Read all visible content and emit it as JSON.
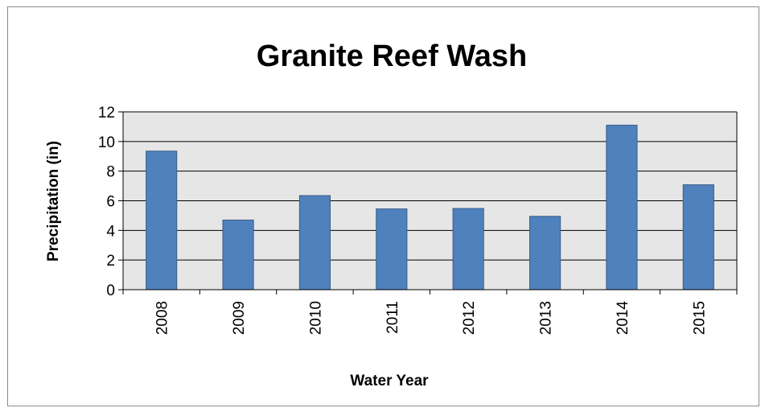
{
  "chart_data": {
    "type": "bar",
    "title": "Granite Reef Wash",
    "xlabel": "Water Year",
    "ylabel": "Precipitation (in)",
    "categories": [
      "2008",
      "2009",
      "2010",
      "2011",
      "2012",
      "2013",
      "2014",
      "2015"
    ],
    "values": [
      9.35,
      4.7,
      6.35,
      5.45,
      5.48,
      4.95,
      11.1,
      7.08
    ],
    "ylim": [
      0,
      12
    ],
    "yticks": [
      0,
      2,
      4,
      6,
      8,
      10,
      12
    ],
    "grid": true,
    "legend": "none",
    "colors": {
      "bar_fill": "#4f81bd",
      "bar_stroke": "#385d8a",
      "plot_background": "#e6e6e6",
      "gridline": "#000000"
    }
  }
}
